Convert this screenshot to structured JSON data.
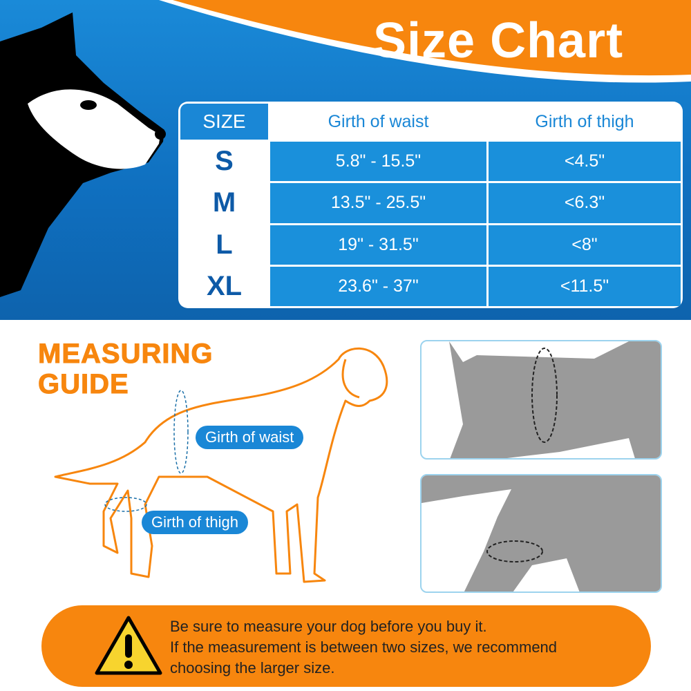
{
  "title": "Size Chart",
  "table": {
    "headers": [
      "SIZE",
      "Girth of waist",
      "Girth of thigh"
    ],
    "rows": [
      {
        "size": "S",
        "waist": "5.8\" - 15.5\"",
        "thigh": "<4.5\""
      },
      {
        "size": "M",
        "waist": "13.5\" - 25.5\"",
        "thigh": "<6.3\""
      },
      {
        "size": "L",
        "waist": "19\" - 31.5\"",
        "thigh": "<8\""
      },
      {
        "size": "XL",
        "waist": "23.6\" - 37\"",
        "thigh": "<11.5\""
      }
    ]
  },
  "guide": {
    "line1": "MEASURING",
    "line2": "GUIDE",
    "waist_label": "Girth of waist",
    "thigh_label": "Girth of thigh"
  },
  "warning": {
    "icon": "warning-triangle-icon",
    "lines": [
      "Be sure to measure your dog before you buy it.",
      "If the measurement is between two sizes, we recommend",
      "choosing the larger size."
    ]
  },
  "colors": {
    "blue": "#1a87d6",
    "orange": "#f7860e",
    "navy": "#0d5aa7"
  }
}
